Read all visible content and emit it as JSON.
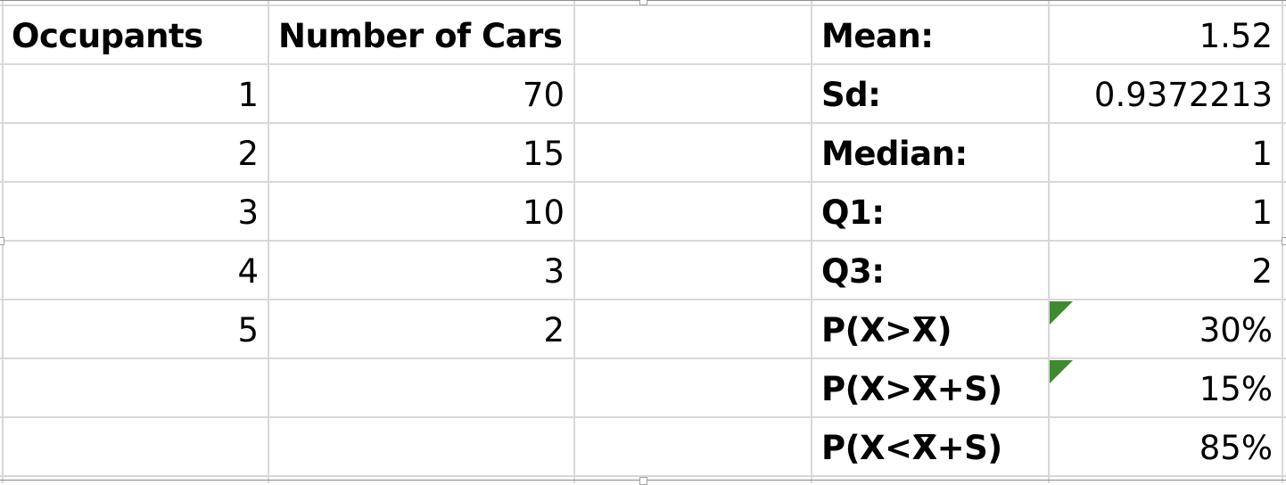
{
  "sheet": {
    "frequency_table": {
      "headers": {
        "occupants": "Occupants",
        "number_of_cars": "Number of Cars"
      },
      "rows": [
        {
          "occupants": "1",
          "number_of_cars": "70"
        },
        {
          "occupants": "2",
          "number_of_cars": "15"
        },
        {
          "occupants": "3",
          "number_of_cars": "10"
        },
        {
          "occupants": "4",
          "number_of_cars": "3"
        },
        {
          "occupants": "5",
          "number_of_cars": "2"
        }
      ]
    },
    "statistics": [
      {
        "label": "Mean:",
        "value": "1.52"
      },
      {
        "label": "Sd:",
        "value": "0.9372213"
      },
      {
        "label": "Median:",
        "value": "1"
      },
      {
        "label": "Q1:",
        "value": "1"
      },
      {
        "label": "Q3:",
        "value": "2"
      },
      {
        "label_pre": "P(X>",
        "label_bar": "X",
        "label_post": ")",
        "value": "30%"
      },
      {
        "label_pre": "P(X>",
        "label_bar": "X",
        "label_post": "+S)",
        "value": "15%"
      },
      {
        "label_pre": "P(X<",
        "label_bar": "X",
        "label_post": "+S)",
        "value": "85%"
      }
    ],
    "colors": {
      "gridline": "#d8d8d8",
      "comment_flag": "#3d8b2e"
    }
  }
}
